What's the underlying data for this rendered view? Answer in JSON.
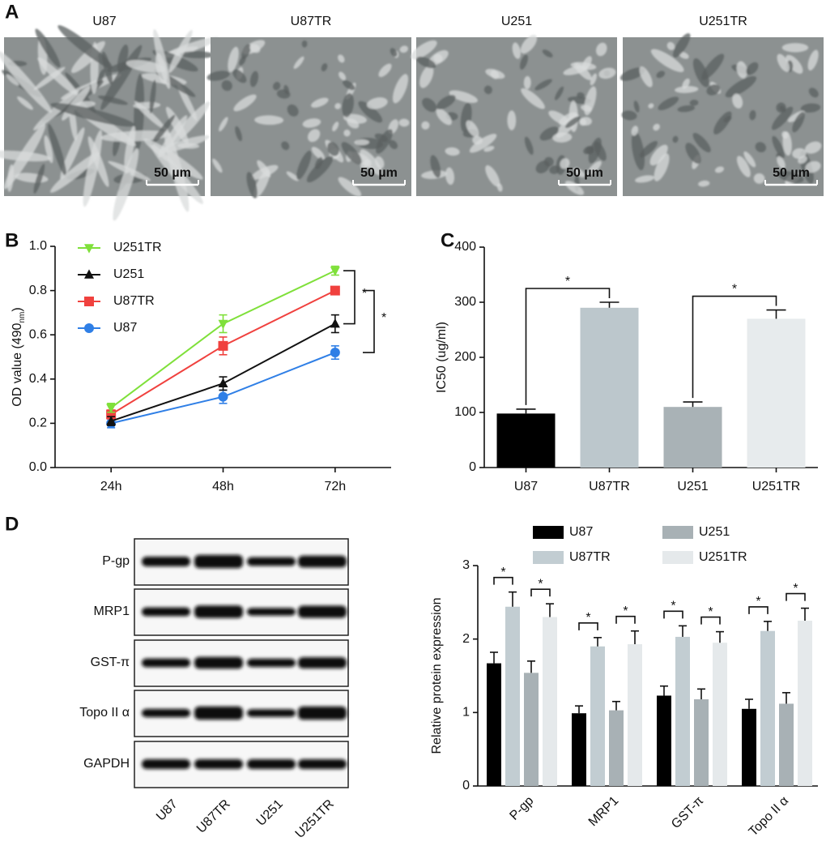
{
  "panel_labels": [
    "A",
    "B",
    "C",
    "D"
  ],
  "micrographs": {
    "titles": [
      "U87",
      "U87TR",
      "U251",
      "U251TR"
    ],
    "scale_bar": "50 µm"
  },
  "blot": {
    "rows": [
      "P-gp",
      "MRP1",
      "GST-π",
      "Topo II α",
      "GAPDH"
    ],
    "lanes": [
      "U87",
      "U87TR",
      "U251",
      "U251TR"
    ]
  },
  "chart_data": [
    {
      "type": "line",
      "categories": [
        "24h",
        "48h",
        "72h"
      ],
      "ylabel": "OD value (490",
      "ylabel_subscript": "nm",
      "ylabel_end": ")",
      "ylim": [
        0,
        1.0
      ],
      "yticks": [
        {
          "value": 0,
          "label": "0.0"
        },
        0.2,
        0.4,
        0.6,
        0.8,
        {
          "value": 1.0,
          "label": "1.0"
        }
      ],
      "series": [
        {
          "name": "U251TR",
          "color": "#7fe03a",
          "marker": "triangle-down",
          "values": [
            0.27,
            0.65,
            0.89
          ],
          "errors": [
            0.02,
            0.04,
            0.02
          ]
        },
        {
          "name": "U251",
          "color": "#111111",
          "marker": "triangle-up",
          "values": [
            0.21,
            0.38,
            0.65
          ],
          "errors": [
            0.02,
            0.03,
            0.04
          ]
        },
        {
          "name": "U87TR",
          "color": "#f0413e",
          "marker": "square",
          "values": [
            0.24,
            0.55,
            0.8
          ],
          "errors": [
            0.02,
            0.04,
            0.01
          ]
        },
        {
          "name": "U87",
          "color": "#2f7fe6",
          "marker": "circle",
          "values": [
            0.2,
            0.32,
            0.52
          ],
          "errors": [
            0.02,
            0.03,
            0.03
          ]
        }
      ],
      "annotations": [
        "*",
        "*"
      ]
    },
    {
      "type": "bar",
      "categories": [
        "U87",
        "U87TR",
        "U251",
        "U251TR"
      ],
      "values": [
        98,
        290,
        110,
        270
      ],
      "errors": [
        8,
        10,
        9,
        16
      ],
      "colors": [
        "#000000",
        "#bcc7cc",
        "#a9b2b6",
        "#e7ebed"
      ],
      "ylabel": "IC50 (ug/ml)",
      "ylim": [
        0,
        400
      ],
      "yticks": [
        0,
        100,
        200,
        300,
        400
      ],
      "annotations": [
        "*",
        "*"
      ]
    },
    {
      "type": "grouped_bar",
      "categories": [
        "P-gp",
        "MRP1",
        "GST-π",
        "Topo II α"
      ],
      "series": [
        {
          "name": "U87",
          "color": "#000000",
          "values": [
            1.67,
            0.99,
            1.23,
            1.05
          ],
          "errors": [
            0.15,
            0.1,
            0.13,
            0.13
          ]
        },
        {
          "name": "U87TR",
          "color": "#c2cdd2",
          "values": [
            2.44,
            1.9,
            2.03,
            2.11
          ],
          "errors": [
            0.2,
            0.12,
            0.15,
            0.13
          ]
        },
        {
          "name": "U251",
          "color": "#a8b1b5",
          "values": [
            1.54,
            1.03,
            1.18,
            1.12
          ],
          "errors": [
            0.16,
            0.12,
            0.14,
            0.15
          ]
        },
        {
          "name": "U251TR",
          "color": "#e5e9eb",
          "values": [
            2.3,
            1.93,
            1.95,
            2.25
          ],
          "errors": [
            0.18,
            0.18,
            0.15,
            0.17
          ]
        }
      ],
      "ylabel": "Relative protein expression",
      "ylim": [
        0,
        3
      ],
      "yticks": [
        0,
        1,
        2,
        3
      ],
      "annotations": [
        "*",
        "*",
        "*",
        "*",
        "*",
        "*",
        "*",
        "*"
      ]
    }
  ]
}
